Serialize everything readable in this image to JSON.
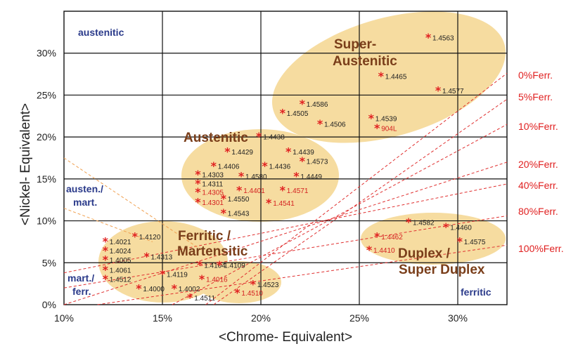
{
  "chart_data": {
    "type": "scatter",
    "xlabel": "<Chrome- Equivalent>",
    "ylabel": "<Nickel- Equivalent>",
    "xlim": [
      10,
      32.5
    ],
    "ylim": [
      0,
      35
    ],
    "x_ticks": [
      "10%",
      "15%",
      "20%",
      "25%",
      "30%"
    ],
    "y_ticks": [
      "0%",
      "5%",
      "10%",
      "15%",
      "20%",
      "25%",
      "30%"
    ],
    "grid": true,
    "colors": {
      "marker": "#e02020",
      "label_default": "#222222",
      "label_red": "#d42020",
      "region_fill": "#f6dca0",
      "ferrite_line": "#e03030",
      "dashed_orange": "#f0a050"
    },
    "regions": [
      {
        "label": "Super-\nAustenitic",
        "label_lines": [
          "Super-",
          "Austenitic"
        ]
      },
      {
        "label": "Austenitic",
        "label_lines": [
          "Austenitic"
        ]
      },
      {
        "label": "Ferritic / Martensitic",
        "label_lines": [
          "Ferritic /",
          "Martensitic"
        ]
      },
      {
        "label": "Duplex / Super Duplex",
        "label_lines": [
          "Duplex /",
          "Super Duplex"
        ]
      }
    ],
    "corner_labels": [
      "austenitic",
      "austen./",
      "mart.",
      "mart./",
      "ferr.",
      "ferritic"
    ],
    "ferrite_lines": [
      {
        "name": "0%Ferr.",
        "from": [
          17.2,
          0
        ],
        "to": [
          32.5,
          27.6
        ]
      },
      {
        "name": "5%Ferr.",
        "from": [
          17.6,
          0
        ],
        "to": [
          32.5,
          24.5
        ]
      },
      {
        "name": "10%Ferr.",
        "from": [
          15.5,
          0
        ],
        "to": [
          32.5,
          21.5
        ]
      },
      {
        "name": "20%Ferr.",
        "from": [
          10,
          0
        ],
        "to": [
          32.5,
          17.0
        ]
      },
      {
        "name": "40%Ferr.",
        "from": [
          10,
          3.8
        ],
        "to": [
          32.5,
          14.4
        ]
      },
      {
        "name": "80%Ferr.",
        "from": [
          10,
          2.0
        ],
        "to": [
          32.5,
          10.6
        ]
      },
      {
        "name": "100%Ferr.",
        "from": [
          11.7,
          0
        ],
        "to": [
          32.5,
          7.1
        ]
      }
    ],
    "points": [
      {
        "x": 28.5,
        "y": 31.8,
        "label": "1.4563",
        "red": false
      },
      {
        "x": 26.1,
        "y": 27.2,
        "label": "1.4465",
        "red": false
      },
      {
        "x": 29.0,
        "y": 25.5,
        "label": "1.4577",
        "red": false
      },
      {
        "x": 22.1,
        "y": 23.9,
        "label": "1.4586",
        "red": false
      },
      {
        "x": 21.1,
        "y": 22.8,
        "label": "1.4505",
        "red": false
      },
      {
        "x": 23.0,
        "y": 21.5,
        "label": "1.4506",
        "red": false
      },
      {
        "x": 25.6,
        "y": 22.2,
        "label": "1.4539",
        "red": false
      },
      {
        "x": 25.9,
        "y": 21.0,
        "label": "904L",
        "red": true
      },
      {
        "x": 19.9,
        "y": 20.0,
        "label": "1.4438",
        "red": false
      },
      {
        "x": 18.3,
        "y": 18.2,
        "label": "1.4429",
        "red": false
      },
      {
        "x": 21.4,
        "y": 18.2,
        "label": "1.4439",
        "red": false
      },
      {
        "x": 22.1,
        "y": 17.1,
        "label": "1.4573",
        "red": false
      },
      {
        "x": 17.6,
        "y": 16.5,
        "label": "1.4406",
        "red": false
      },
      {
        "x": 20.2,
        "y": 16.5,
        "label": "1.4436",
        "red": false
      },
      {
        "x": 16.8,
        "y": 15.5,
        "label": "1.4303",
        "red": false
      },
      {
        "x": 19.0,
        "y": 15.3,
        "label": "1.4580",
        "red": false
      },
      {
        "x": 21.8,
        "y": 15.3,
        "label": "1.4449",
        "red": false
      },
      {
        "x": 16.8,
        "y": 14.4,
        "label": "1.4311",
        "red": false
      },
      {
        "x": 16.8,
        "y": 13.4,
        "label": "1.4305",
        "red": true
      },
      {
        "x": 18.9,
        "y": 13.6,
        "label": "1.4401",
        "red": true
      },
      {
        "x": 21.1,
        "y": 13.6,
        "label": "1.4571",
        "red": true
      },
      {
        "x": 18.1,
        "y": 12.6,
        "label": "1.4550",
        "red": false
      },
      {
        "x": 16.8,
        "y": 12.2,
        "label": "1.4301",
        "red": true
      },
      {
        "x": 20.4,
        "y": 12.1,
        "label": "1.4541",
        "red": true
      },
      {
        "x": 18.1,
        "y": 10.9,
        "label": "1.4543",
        "red": false
      },
      {
        "x": 13.6,
        "y": 8.1,
        "label": "1.4120",
        "red": false
      },
      {
        "x": 12.1,
        "y": 7.5,
        "label": "1.4021",
        "red": false
      },
      {
        "x": 12.1,
        "y": 6.4,
        "label": "1.4024",
        "red": false
      },
      {
        "x": 14.2,
        "y": 5.7,
        "label": "1.4313",
        "red": false
      },
      {
        "x": 12.1,
        "y": 5.3,
        "label": "1.4005",
        "red": false
      },
      {
        "x": 16.9,
        "y": 4.7,
        "label": "1.4104",
        "red": false
      },
      {
        "x": 17.9,
        "y": 4.7,
        "label": "1.4109",
        "red": false
      },
      {
        "x": 12.1,
        "y": 4.1,
        "label": "1.4061",
        "red": false
      },
      {
        "x": 15.0,
        "y": 3.6,
        "label": "1.4119",
        "red": false
      },
      {
        "x": 12.1,
        "y": 3.0,
        "label": "1.4512",
        "red": false
      },
      {
        "x": 17.0,
        "y": 3.0,
        "label": "1.4016",
        "red": true
      },
      {
        "x": 19.6,
        "y": 2.4,
        "label": "1.4523",
        "red": false
      },
      {
        "x": 13.8,
        "y": 1.9,
        "label": "1.4000",
        "red": false
      },
      {
        "x": 15.6,
        "y": 1.9,
        "label": "1.4002",
        "red": false
      },
      {
        "x": 18.8,
        "y": 1.4,
        "label": "1.4510",
        "red": true
      },
      {
        "x": 16.4,
        "y": 0.8,
        "label": "1.4511",
        "red": false
      },
      {
        "x": 27.5,
        "y": 9.8,
        "label": "1.4582",
        "red": false
      },
      {
        "x": 29.4,
        "y": 9.2,
        "label": "1.4460",
        "red": false
      },
      {
        "x": 25.9,
        "y": 8.1,
        "label": "1.4462",
        "red": true
      },
      {
        "x": 30.1,
        "y": 7.5,
        "label": "1.4575",
        "red": false
      },
      {
        "x": 25.5,
        "y": 6.5,
        "label": "1.4410",
        "red": true
      }
    ]
  }
}
